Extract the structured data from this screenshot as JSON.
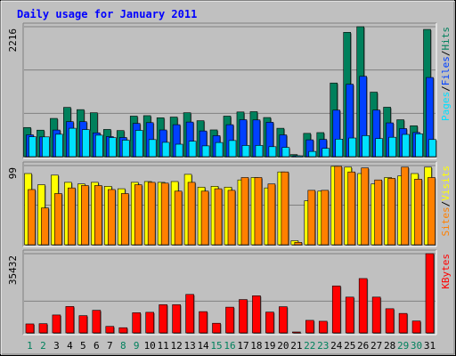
{
  "chart_data": {
    "type": "bar",
    "title": "Daily usage for January 2011",
    "colors": {
      "background": "#C0C0C0",
      "title": "#0000FF",
      "hits": "#00805C",
      "files": "#0040FF",
      "pages": "#00E0FF",
      "visits": "#FFFF00",
      "sites": "#FF8000",
      "kbytes": "#FF0000",
      "weekend_label": "#00805C",
      "weekday_label": "#000000"
    },
    "days": [
      "1",
      "2",
      "3",
      "4",
      "5",
      "6",
      "7",
      "8",
      "9",
      "10",
      "11",
      "12",
      "13",
      "14",
      "15",
      "16",
      "17",
      "18",
      "19",
      "20",
      "21",
      "22",
      "23",
      "24",
      "25",
      "26",
      "27",
      "28",
      "29",
      "30",
      "31"
    ],
    "weekend_days": [
      "1",
      "2",
      "8",
      "9",
      "15",
      "16",
      "22",
      "23",
      "29",
      "30"
    ],
    "panels": [
      {
        "id": "hits-files-pages",
        "max_label": "2216",
        "ymax": 2216,
        "legend": [
          "Pages",
          "/",
          "Files",
          "/",
          "Hits"
        ],
        "legend_colors": [
          "#00E0FF",
          "#000000",
          "#0040FF",
          "#000000",
          "#00805C"
        ],
        "series": [
          {
            "name": "Hits",
            "color": "#00805C",
            "values": [
              497,
              452,
              652,
              840,
              802,
              749,
              464,
              445,
              691,
              699,
              663,
              675,
              749,
              613,
              456,
              691,
              762,
              767,
              667,
              484,
              35,
              397,
              410,
              1256,
              2120,
              2216,
              1100,
              843,
              629,
              527,
              2170
            ]
          },
          {
            "name": "Files",
            "color": "#0040FF",
            "values": [
              372,
              337,
              454,
              597,
              596,
              406,
              342,
              327,
              567,
              580,
              455,
              545,
              590,
              438,
              358,
              545,
              630,
              626,
              586,
              371,
              10,
              287,
              294,
              793,
              1235,
              1370,
              794,
              576,
              479,
              412,
              1350
            ]
          },
          {
            "name": "Pages",
            "color": "#00E0FF",
            "values": [
              339,
              337,
              382,
              484,
              461,
              366,
              325,
              281,
              448,
              291,
              244,
              212,
              263,
              184,
              241,
              275,
              190,
              191,
              170,
              158,
              5,
              89,
              141,
              299,
              318,
              358,
              308,
              331,
              379,
              389,
              292
            ]
          }
        ]
      },
      {
        "id": "visits-sites",
        "max_label": "99",
        "ymax": 99,
        "legend": [
          "Sites",
          "/",
          "Visits"
        ],
        "legend_colors": [
          "#FF8000",
          "#000000",
          "#FFFF00"
        ],
        "series": [
          {
            "name": "Visits",
            "color": "#FFFF00",
            "values": [
              89,
              75,
              87,
              78,
              76,
              78,
              73,
              70,
              78,
              79,
              78,
              79,
              88,
              72,
              73,
              72,
              81,
              84,
              71,
              91,
              5,
              55,
              67,
              98,
              97,
              89,
              76,
              84,
              86,
              89,
              97
            ]
          },
          {
            "name": "Sites",
            "color": "#FF8000",
            "values": [
              69,
              46,
              64,
              71,
              74,
              74,
              69,
              64,
              75,
              78,
              77,
              67,
              78,
              67,
              70,
              68,
              84,
              84,
              76,
              91,
              3,
              68,
              68,
              98,
              91,
              96,
              81,
              83,
              97,
              82,
              84
            ]
          }
        ]
      },
      {
        "id": "kbytes",
        "max_label": "35432",
        "ymax": 35432,
        "legend": [
          "KBytes"
        ],
        "legend_colors": [
          "#FF0000"
        ],
        "series": [
          {
            "name": "KBytes",
            "color": "#FF0000",
            "values": [
              4000,
              4100,
              8000,
              11800,
              7700,
              10100,
              2900,
              2300,
              9000,
              9200,
              12600,
              12600,
              17200,
              9500,
              4300,
              11500,
              14900,
              16600,
              9300,
              11700,
              400,
              5600,
              5200,
              21000,
              16000,
              24300,
              16000,
              10800,
              8700,
              5300,
              35432
            ]
          }
        ]
      }
    ]
  }
}
